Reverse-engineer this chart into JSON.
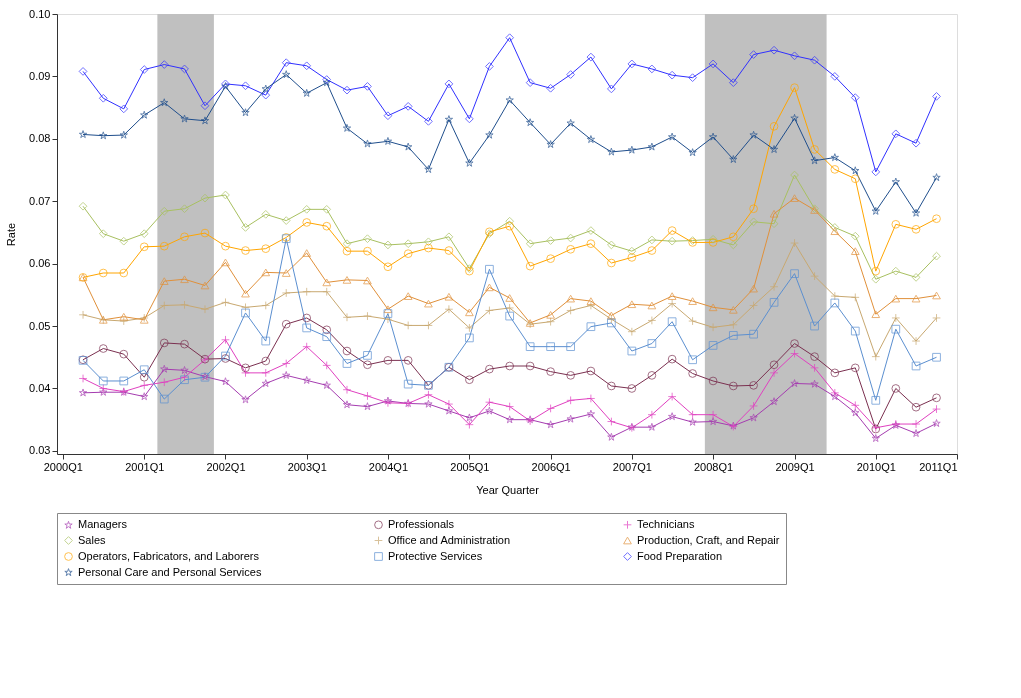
{
  "chart_data": {
    "type": "line",
    "xlabel": "Year Quarter",
    "ylabel": "Rate",
    "x": [
      "2000-04",
      "2000-07",
      "2000-10",
      "2001-01",
      "2001-04",
      "2001-07",
      "2001-10",
      "2002-01",
      "2002-04",
      "2002-07",
      "2002-10",
      "2003-01",
      "2003-04",
      "2003-07",
      "2003-10",
      "2004-01",
      "2004-04",
      "2004-07",
      "2004-10",
      "2005-01",
      "2005-04",
      "2005-07",
      "2005-10",
      "2006-01",
      "2006-04",
      "2006-07",
      "2006-10",
      "2007-01",
      "2007-04",
      "2007-07",
      "2007-10",
      "2008-01",
      "2008-04",
      "2008-07",
      "2008-10",
      "2009-01",
      "2009-04",
      "2009-07",
      "2009-10",
      "2010-01",
      "2010-04",
      "2010-07",
      "2010-10"
    ],
    "xlim": [
      "1999-12-06",
      "2011-01-01"
    ],
    "ylim": [
      0.0295,
      0.1
    ],
    "xticks": [
      {
        "value": "2000-01",
        "label": "2000Q1"
      },
      {
        "value": "2001-01",
        "label": "2001Q1"
      },
      {
        "value": "2002-01",
        "label": "2002Q1"
      },
      {
        "value": "2003-01",
        "label": "2003Q1"
      },
      {
        "value": "2004-01",
        "label": "2004Q1"
      },
      {
        "value": "2005-01",
        "label": "2005Q1"
      },
      {
        "value": "2006-01",
        "label": "2006Q1"
      },
      {
        "value": "2007-01",
        "label": "2007Q1"
      },
      {
        "value": "2008-01",
        "label": "2008Q1"
      },
      {
        "value": "2009-01",
        "label": "2009Q1"
      },
      {
        "value": "2010-01",
        "label": "2010Q1"
      },
      {
        "value": "2011-01",
        "label": "2011Q1"
      }
    ],
    "yticks": [
      0.03,
      0.04,
      0.05,
      0.06,
      0.07,
      0.08,
      0.09,
      {
        "value": 0.1,
        "label": "0.10"
      }
    ],
    "grid": false,
    "legend": "bottom",
    "line_style": "solid",
    "bands": [
      {
        "axis": "x",
        "from": "2001-03-01",
        "to": "2001-11-10",
        "color": "#c0c0c0"
      },
      {
        "axis": "x",
        "from": "2007-11-25",
        "to": "2009-05-25",
        "color": "#c0c0c0"
      }
    ],
    "series": [
      {
        "name": "Managers",
        "color": "#a53cb0",
        "marker": "star",
        "values": [
          0.0393,
          0.0394,
          0.0394,
          0.0387,
          0.0431,
          0.0429,
          0.0419,
          0.0411,
          0.0382,
          0.0408,
          0.0421,
          0.0413,
          0.0405,
          0.0374,
          0.0371,
          0.038,
          0.0376,
          0.0375,
          0.0364,
          0.0353,
          0.0364,
          0.035,
          0.035,
          0.0342,
          0.0351,
          0.0359,
          0.0322,
          0.0338,
          0.0338,
          0.0355,
          0.0346,
          0.0347,
          0.034,
          0.0353,
          0.0379,
          0.0408,
          0.0407,
          0.0387,
          0.0361,
          0.032,
          0.0341,
          0.0328,
          0.0344
        ]
      },
      {
        "name": "Professionals",
        "color": "#7b3050",
        "marker": "circle",
        "values": [
          0.0446,
          0.0464,
          0.0455,
          0.0418,
          0.0473,
          0.0471,
          0.0447,
          0.0448,
          0.0433,
          0.0444,
          0.0503,
          0.0513,
          0.0494,
          0.046,
          0.0438,
          0.0445,
          0.0445,
          0.0405,
          0.0434,
          0.0414,
          0.0431,
          0.0436,
          0.0436,
          0.0427,
          0.0421,
          0.0428,
          0.0404,
          0.04,
          0.0421,
          0.0447,
          0.0424,
          0.0412,
          0.0404,
          0.0405,
          0.0438,
          0.0472,
          0.0451,
          0.0425,
          0.0433,
          0.0335,
          0.04,
          0.037,
          0.0385
        ]
      },
      {
        "name": "Technicians",
        "color": "#e040c0",
        "marker": "cross",
        "values": [
          0.0416,
          0.04,
          0.0395,
          0.0405,
          0.041,
          0.0418,
          0.0446,
          0.0478,
          0.0425,
          0.0425,
          0.044,
          0.0467,
          0.0437,
          0.0398,
          0.0388,
          0.0377,
          0.0376,
          0.039,
          0.0375,
          0.0342,
          0.0378,
          0.0371,
          0.0348,
          0.0368,
          0.0381,
          0.0384,
          0.0347,
          0.0337,
          0.0358,
          0.0387,
          0.0358,
          0.0358,
          0.0339,
          0.0372,
          0.0425,
          0.0456,
          0.0433,
          0.0393,
          0.0373,
          0.0337,
          0.0343,
          0.0343,
          0.0367
        ]
      },
      {
        "name": "Sales",
        "color": "#a8c060",
        "marker": "diamond",
        "values": [
          0.0692,
          0.0648,
          0.0636,
          0.0648,
          0.0684,
          0.0688,
          0.0705,
          0.071,
          0.0658,
          0.0679,
          0.0669,
          0.0687,
          0.0687,
          0.0632,
          0.064,
          0.063,
          0.0632,
          0.0635,
          0.0643,
          0.0592,
          0.0648,
          0.0668,
          0.0632,
          0.0637,
          0.0641,
          0.0653,
          0.063,
          0.062,
          0.0638,
          0.0636,
          0.0637,
          0.0639,
          0.063,
          0.0667,
          0.0664,
          0.0742,
          0.0688,
          0.0658,
          0.0644,
          0.0575,
          0.0588,
          0.0578,
          0.0612
        ]
      },
      {
        "name": "Office and Administration",
        "color": "#c8a870",
        "marker": "cross",
        "values": [
          0.0518,
          0.051,
          0.0508,
          0.0513,
          0.0533,
          0.0534,
          0.0527,
          0.0538,
          0.053,
          0.0533,
          0.0553,
          0.0555,
          0.0555,
          0.0514,
          0.0516,
          0.0511,
          0.0501,
          0.0501,
          0.0527,
          0.0497,
          0.0525,
          0.0529,
          0.0503,
          0.0507,
          0.0525,
          0.0533,
          0.0511,
          0.0491,
          0.0509,
          0.0536,
          0.0508,
          0.0498,
          0.0502,
          0.0533,
          0.0563,
          0.0633,
          0.058,
          0.0548,
          0.0546,
          0.0451,
          0.0513,
          0.0476,
          0.0513
        ]
      },
      {
        "name": "Production, Craft, and Repair",
        "color": "#e0903a",
        "marker": "triangle",
        "values": [
          0.0578,
          0.051,
          0.0515,
          0.051,
          0.0572,
          0.0575,
          0.0565,
          0.0602,
          0.0552,
          0.0586,
          0.0585,
          0.0617,
          0.057,
          0.0574,
          0.0573,
          0.0527,
          0.0548,
          0.0536,
          0.0547,
          0.0522,
          0.0562,
          0.0545,
          0.0505,
          0.0518,
          0.0544,
          0.054,
          0.0517,
          0.0535,
          0.0533,
          0.0548,
          0.054,
          0.053,
          0.0526,
          0.056,
          0.068,
          0.0705,
          0.0686,
          0.0652,
          0.062,
          0.0519,
          0.0544,
          0.0544,
          0.0549
        ]
      },
      {
        "name": "Operators, Fabricators, and Laborers",
        "color": "#ffa500",
        "marker": "circle",
        "values": [
          0.0578,
          0.0585,
          0.0585,
          0.0627,
          0.0628,
          0.0643,
          0.0649,
          0.0628,
          0.0621,
          0.0624,
          0.0642,
          0.0666,
          0.066,
          0.062,
          0.062,
          0.0595,
          0.0616,
          0.0625,
          0.0621,
          0.0588,
          0.0651,
          0.066,
          0.0596,
          0.0608,
          0.0623,
          0.0632,
          0.0601,
          0.061,
          0.0621,
          0.0653,
          0.0634,
          0.0634,
          0.0643,
          0.0688,
          0.082,
          0.0882,
          0.0783,
          0.0751,
          0.0736,
          0.0588,
          0.0663,
          0.0655,
          0.0672
        ]
      },
      {
        "name": "Protective Services",
        "color": "#5b8fd0",
        "marker": "square",
        "values": [
          0.0445,
          0.0412,
          0.0412,
          0.043,
          0.0383,
          0.0414,
          0.0418,
          0.0452,
          0.0521,
          0.0476,
          0.064,
          0.0497,
          0.0483,
          0.044,
          0.0453,
          0.052,
          0.0407,
          0.0405,
          0.0434,
          0.0481,
          0.0591,
          0.0516,
          0.0467,
          0.0467,
          0.0467,
          0.0499,
          0.0505,
          0.046,
          0.0472,
          0.0507,
          0.0446,
          0.0469,
          0.0485,
          0.0487,
          0.0538,
          0.0584,
          0.05,
          0.0537,
          0.0492,
          0.0381,
          0.0495,
          0.0436,
          0.045
        ]
      },
      {
        "name": "Food Preparation",
        "color": "#3030ff",
        "marker": "diamond",
        "values": [
          0.0908,
          0.0865,
          0.0848,
          0.0911,
          0.0919,
          0.0912,
          0.0853,
          0.0888,
          0.0885,
          0.087,
          0.0922,
          0.0917,
          0.0895,
          0.0878,
          0.0884,
          0.0837,
          0.0852,
          0.0828,
          0.0888,
          0.0832,
          0.0916,
          0.0962,
          0.089,
          0.0881,
          0.0903,
          0.0931,
          0.088,
          0.092,
          0.0912,
          0.0902,
          0.0898,
          0.092,
          0.089,
          0.0935,
          0.0942,
          0.0933,
          0.0926,
          0.09,
          0.0866,
          0.0747,
          0.0808,
          0.0793,
          0.0868
        ]
      },
      {
        "name": "Personal Care and Personal Services",
        "color": "#1f4e8c",
        "marker": "star",
        "values": [
          0.0807,
          0.0805,
          0.0806,
          0.0838,
          0.0858,
          0.0832,
          0.0829,
          0.0884,
          0.0842,
          0.088,
          0.0903,
          0.0873,
          0.089,
          0.0817,
          0.0792,
          0.0796,
          0.0787,
          0.0751,
          0.0831,
          0.0761,
          0.0806,
          0.0862,
          0.0826,
          0.0791,
          0.0825,
          0.0799,
          0.0779,
          0.0782,
          0.0787,
          0.0803,
          0.0778,
          0.0803,
          0.0767,
          0.0806,
          0.0783,
          0.0833,
          0.0765,
          0.077,
          0.0749,
          0.0684,
          0.0731,
          0.0681,
          0.0738
        ]
      }
    ]
  }
}
